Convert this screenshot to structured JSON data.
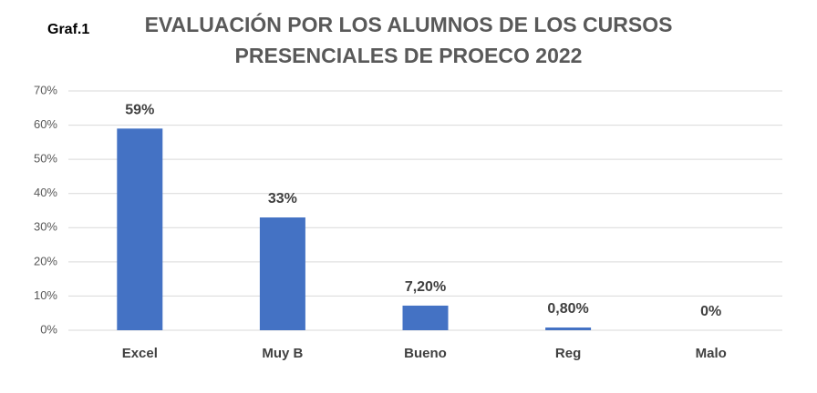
{
  "chart_data": {
    "type": "bar",
    "title": [
      "EVALUACIÓN POR LOS ALUMNOS DE LOS CURSOS",
      "PRESENCIALES DE PROECO 2022"
    ],
    "annotations": [
      "Graf.1"
    ],
    "categories": [
      "Excel",
      "Muy B",
      "Bueno",
      "Reg",
      "Malo"
    ],
    "values": [
      59,
      33,
      7.2,
      0.8,
      0
    ],
    "value_labels": [
      "59%",
      "33%",
      "7,20%",
      "0,80%",
      "0%"
    ],
    "color": "#4472c4",
    "ylim": [
      0,
      70
    ],
    "yticks": [
      {
        "value": 0,
        "label": "0%"
      },
      {
        "value": 10,
        "label": "10%"
      },
      {
        "value": 20,
        "label": "20%"
      },
      {
        "value": 30,
        "label": "30%"
      },
      {
        "value": 40,
        "label": "40%"
      },
      {
        "value": 50,
        "label": "50%"
      },
      {
        "value": 60,
        "label": "60%"
      },
      {
        "value": 70,
        "label": "70%"
      }
    ],
    "grid": true
  }
}
